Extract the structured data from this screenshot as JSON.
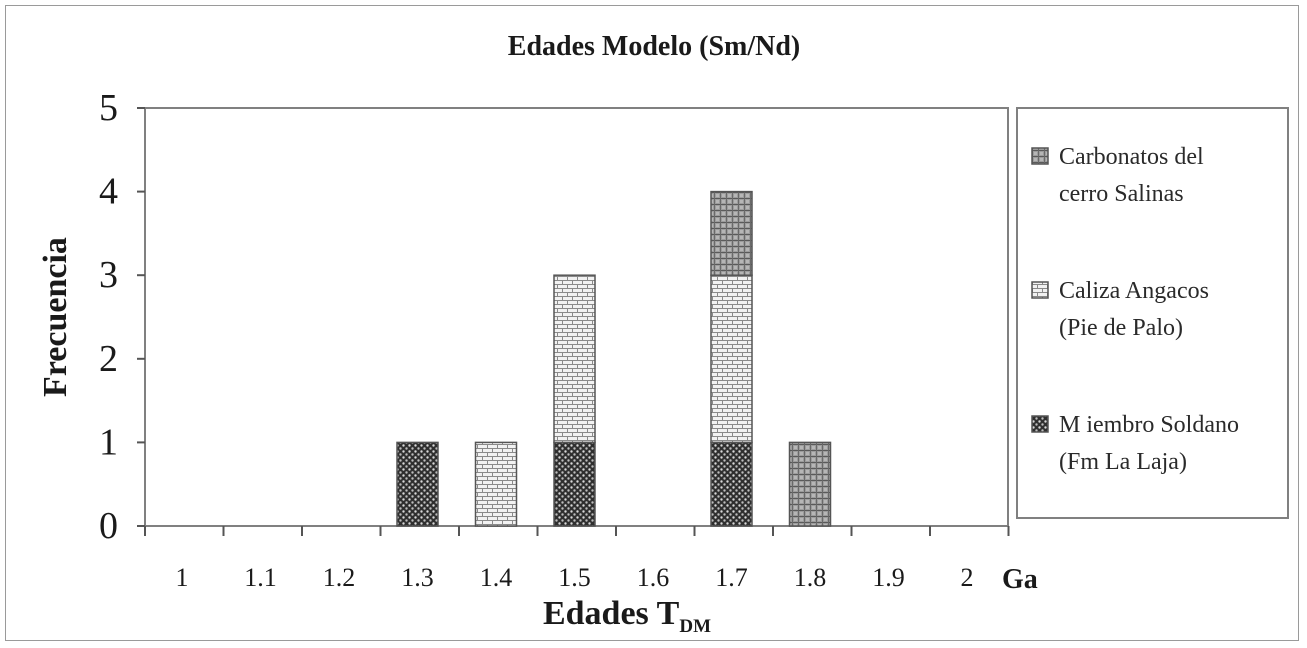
{
  "chart_data": {
    "type": "bar",
    "stacked": true,
    "title": "Edades Modelo (Sm/Nd)",
    "xlabel": "Edades T",
    "xlabel_subscript": "DM",
    "x_unit": "Ga",
    "ylabel": "Frecuencia",
    "categories": [
      "1",
      "1.1",
      "1.2",
      "1.3",
      "1.4",
      "1.5",
      "1.6",
      "1.7",
      "1.8",
      "1.9",
      "2"
    ],
    "ylim": [
      0,
      5
    ],
    "yticks": [
      "0",
      "1",
      "2",
      "3",
      "4",
      "5"
    ],
    "grid": false,
    "legend_position": "right",
    "series": [
      {
        "name": "Miembro Soldano (Fm La Laja)",
        "legend_lines": [
          "M iembro Soldano",
          "(Fm La Laja)"
        ],
        "pattern": "dots",
        "values": [
          0,
          0,
          0,
          1,
          0,
          1,
          0,
          1,
          0,
          0,
          0
        ]
      },
      {
        "name": "Caliza Angacos (Pie de Palo)",
        "legend_lines": [
          "Caliza Angacos",
          "(Pie de Palo)"
        ],
        "pattern": "brick",
        "values": [
          0,
          0,
          0,
          0,
          1,
          2,
          0,
          2,
          0,
          0,
          0
        ]
      },
      {
        "name": "Carbonatos del cerro Salinas",
        "legend_lines": [
          "Carbonatos del",
          "cerro Salinas"
        ],
        "pattern": "grid",
        "values": [
          0,
          0,
          0,
          0,
          0,
          0,
          0,
          1,
          1,
          0,
          0
        ]
      }
    ]
  }
}
